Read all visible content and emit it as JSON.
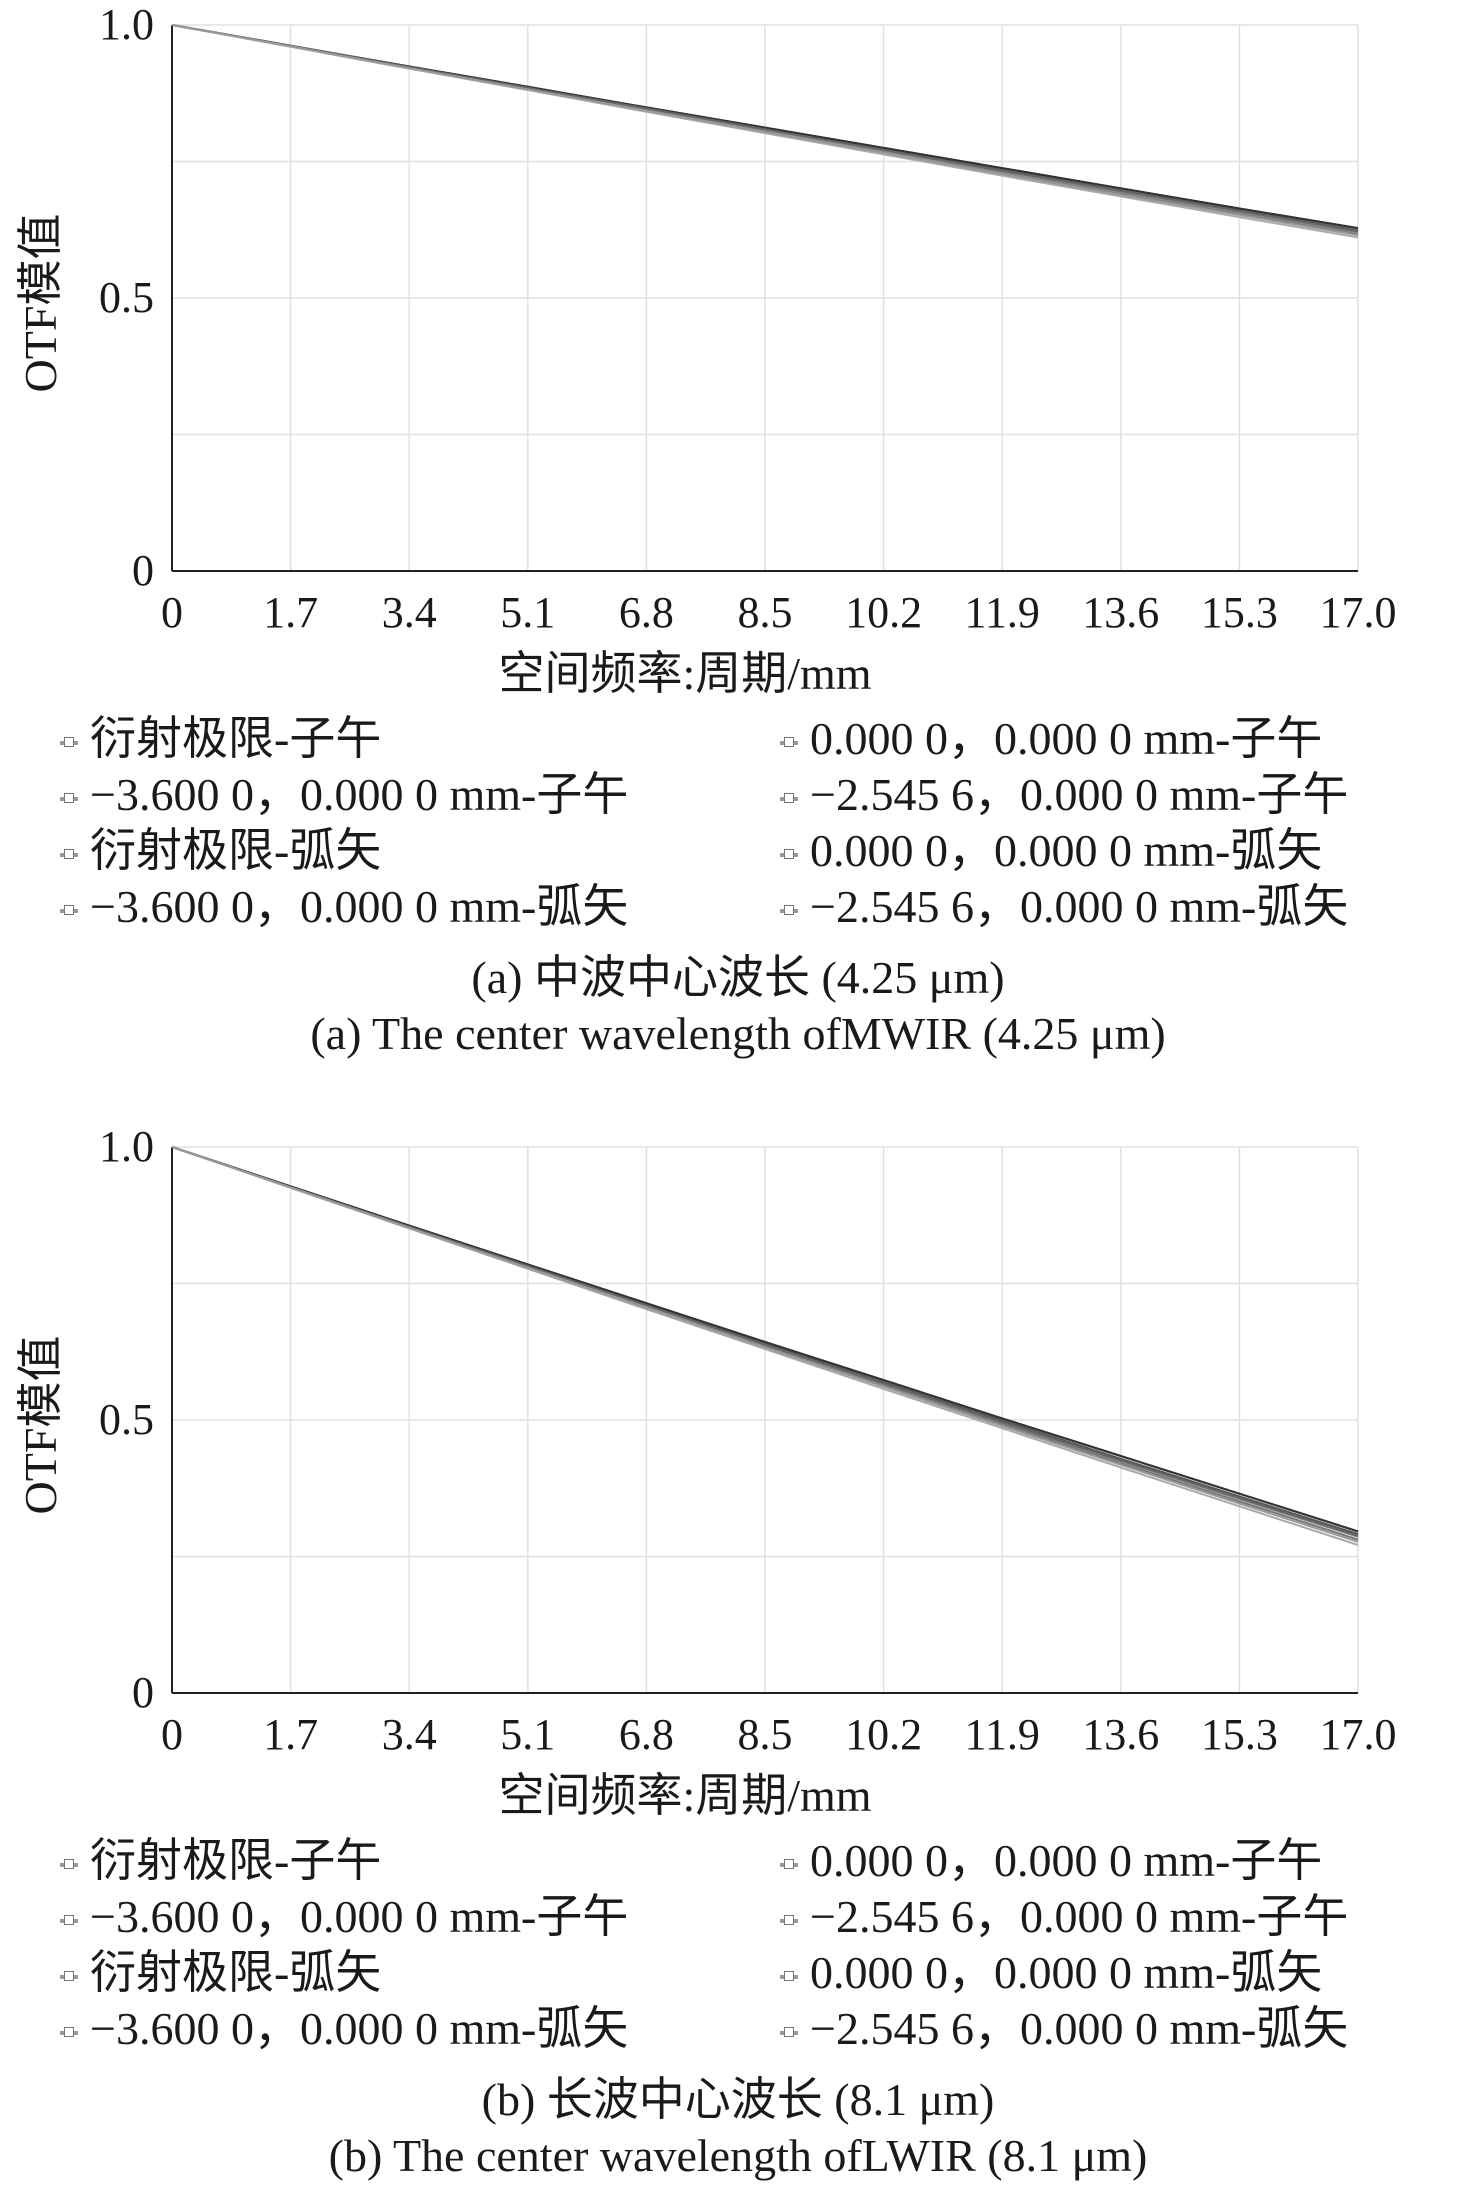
{
  "figures": [
    {
      "legend": [
        "衍射极限-子午",
        "0.000 0，0.000 0 mm-子午",
        "−3.600 0，0.000 0 mm-子午",
        "−2.545 6，0.000 0 mm-子午",
        "衍射极限-弧矢",
        "0.000 0，0.000 0 mm-弧矢",
        "−3.600 0，0.000 0 mm-弧矢",
        "−2.545 6，0.000 0 mm-弧矢"
      ],
      "caption_zh": "(a) 中波中心波长  (4.25 μm)",
      "caption_en": "(a) The center wavelength ofMWIR (4.25 μm)"
    },
    {
      "legend": [
        "衍射极限-子午",
        "0.000 0，0.000 0 mm-子午",
        "−3.600 0，0.000 0 mm-子午",
        "−2.545 6，0.000 0 mm-子午",
        "衍射极限-弧矢",
        "0.000 0，0.000 0 mm-弧矢",
        "−3.600 0，0.000 0 mm-弧矢",
        "−2.545 6，0.000 0 mm-弧矢"
      ],
      "caption_zh": "(b) 长波中心波长  (8.1 μm)",
      "caption_en": "(b) The center wavelength ofLWIR (8.1 μm)"
    }
  ],
  "chart_data": [
    {
      "type": "line",
      "xlabel": "空间频率:周期/mm",
      "ylabel": "OTF模值",
      "xlim": [
        0,
        17.0
      ],
      "ylim": [
        0,
        1.0
      ],
      "xticks": [
        "0",
        "1.7",
        "3.4",
        "5.1",
        "6.8",
        "8.5",
        "10.2",
        "11.9",
        "13.6",
        "15.3",
        "17.0"
      ],
      "yticks": [
        "0",
        "0.5",
        "1.0"
      ],
      "grid": true,
      "x": [
        0,
        1.7,
        3.4,
        5.1,
        6.8,
        8.5,
        10.2,
        11.9,
        13.6,
        15.3,
        17.0
      ],
      "series": [
        {
          "name": "衍射极限-子午",
          "color": "#222222",
          "values": [
            1.0,
            0.962,
            0.924,
            0.887,
            0.849,
            0.812,
            0.775,
            0.738,
            0.701,
            0.664,
            0.628
          ]
        },
        {
          "name": "0.000 0，0.000 0 mm-子午",
          "color": "#555555",
          "values": [
            1.0,
            0.962,
            0.923,
            0.885,
            0.847,
            0.809,
            0.772,
            0.734,
            0.697,
            0.66,
            0.624
          ]
        },
        {
          "name": "−3.600 0，0.000 0 mm-子午",
          "color": "#777777",
          "values": [
            1.0,
            0.961,
            0.922,
            0.883,
            0.844,
            0.806,
            0.767,
            0.729,
            0.691,
            0.654,
            0.617
          ]
        },
        {
          "name": "−2.545 6，0.000 0 mm-子午",
          "color": "#8a8a8a",
          "values": [
            1.0,
            0.961,
            0.922,
            0.884,
            0.845,
            0.807,
            0.769,
            0.731,
            0.694,
            0.657,
            0.62
          ]
        },
        {
          "name": "衍射极限-弧矢",
          "color": "#333333",
          "values": [
            1.0,
            0.962,
            0.924,
            0.887,
            0.849,
            0.812,
            0.775,
            0.738,
            0.701,
            0.664,
            0.628
          ]
        },
        {
          "name": "0.000 0，0.000 0 mm-弧矢",
          "color": "#666666",
          "values": [
            1.0,
            0.962,
            0.923,
            0.885,
            0.847,
            0.809,
            0.771,
            0.733,
            0.696,
            0.659,
            0.622
          ]
        },
        {
          "name": "−3.600 0，0.000 0 mm-弧矢",
          "color": "#aaaaaa",
          "values": [
            1.0,
            0.96,
            0.92,
            0.881,
            0.841,
            0.802,
            0.763,
            0.724,
            0.686,
            0.648,
            0.611
          ]
        },
        {
          "name": "−2.545 6，0.000 0 mm-弧矢",
          "color": "#999999",
          "values": [
            1.0,
            0.961,
            0.921,
            0.882,
            0.843,
            0.804,
            0.766,
            0.727,
            0.689,
            0.652,
            0.615
          ]
        }
      ]
    },
    {
      "type": "line",
      "xlabel": "空间频率:周期/mm",
      "ylabel": "OTF模值",
      "xlim": [
        0,
        17.0
      ],
      "ylim": [
        0,
        1.0
      ],
      "xticks": [
        "0",
        "1.7",
        "3.4",
        "5.1",
        "6.8",
        "8.5",
        "10.2",
        "11.9",
        "13.6",
        "15.3",
        "17.0"
      ],
      "yticks": [
        "0",
        "0.5",
        "1.0"
      ],
      "grid": true,
      "x": [
        0,
        1.7,
        3.4,
        5.1,
        6.8,
        8.5,
        10.2,
        11.9,
        13.6,
        15.3,
        17.0
      ],
      "series": [
        {
          "name": "衍射极限-子午",
          "color": "#222222",
          "values": [
            1.0,
            0.928,
            0.856,
            0.785,
            0.714,
            0.643,
            0.573,
            0.503,
            0.434,
            0.365,
            0.296
          ]
        },
        {
          "name": "0.000 0，0.000 0 mm-子午",
          "color": "#555555",
          "values": [
            1.0,
            0.927,
            0.855,
            0.783,
            0.711,
            0.64,
            0.569,
            0.499,
            0.429,
            0.36,
            0.291
          ]
        },
        {
          "name": "−3.600 0，0.000 0 mm-子午",
          "color": "#777777",
          "values": [
            1.0,
            0.926,
            0.853,
            0.78,
            0.707,
            0.635,
            0.563,
            0.492,
            0.421,
            0.351,
            0.281
          ]
        },
        {
          "name": "−2.545 6，0.000 0 mm-子午",
          "color": "#8a8a8a",
          "values": [
            1.0,
            0.927,
            0.854,
            0.781,
            0.709,
            0.637,
            0.566,
            0.495,
            0.425,
            0.355,
            0.286
          ]
        },
        {
          "name": "衍射极限-弧矢",
          "color": "#333333",
          "values": [
            1.0,
            0.928,
            0.856,
            0.785,
            0.714,
            0.643,
            0.573,
            0.503,
            0.434,
            0.365,
            0.296
          ]
        },
        {
          "name": "0.000 0，0.000 0 mm-弧矢",
          "color": "#666666",
          "values": [
            1.0,
            0.927,
            0.854,
            0.782,
            0.71,
            0.638,
            0.567,
            0.496,
            0.426,
            0.357,
            0.288
          ]
        },
        {
          "name": "−3.600 0，0.000 0 mm-弧矢",
          "color": "#aaaaaa",
          "values": [
            1.0,
            0.925,
            0.851,
            0.777,
            0.703,
            0.63,
            0.557,
            0.485,
            0.413,
            0.342,
            0.271
          ]
        },
        {
          "name": "−2.545 6，0.000 0 mm-弧矢",
          "color": "#999999",
          "values": [
            1.0,
            0.926,
            0.852,
            0.779,
            0.706,
            0.633,
            0.561,
            0.489,
            0.418,
            0.347,
            0.277
          ]
        }
      ]
    }
  ]
}
